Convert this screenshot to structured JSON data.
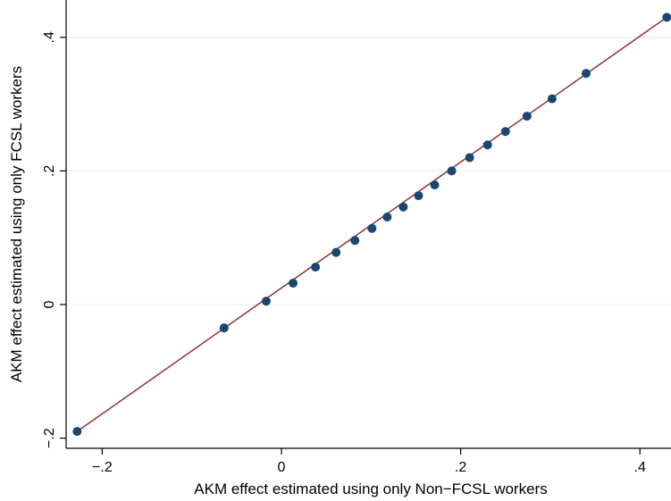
{
  "chart_data": {
    "type": "scatter",
    "title": "",
    "xlabel": "AKM effect estimated using only Non−FCSL workers",
    "ylabel": "AKM effect estimated using only FCSL workers",
    "xlim": [
      -0.24,
      0.43
    ],
    "ylim": [
      -0.2,
      0.43
    ],
    "x_ticks": [
      -0.2,
      0,
      0.2,
      0.4
    ],
    "x_tick_labels": [
      "−.2",
      "0",
      ".2",
      ".4"
    ],
    "y_ticks": [
      -0.2,
      0,
      0.2,
      0.4
    ],
    "y_tick_labels": [
      "−.2",
      "0",
      ".2",
      ".4"
    ],
    "grid": "horizontal",
    "points": [
      {
        "x": -0.228,
        "y": -0.19
      },
      {
        "x": -0.064,
        "y": -0.035
      },
      {
        "x": -0.017,
        "y": 0.005
      },
      {
        "x": 0.013,
        "y": 0.032
      },
      {
        "x": 0.038,
        "y": 0.056
      },
      {
        "x": 0.061,
        "y": 0.078
      },
      {
        "x": 0.082,
        "y": 0.096
      },
      {
        "x": 0.101,
        "y": 0.114
      },
      {
        "x": 0.118,
        "y": 0.131
      },
      {
        "x": 0.136,
        "y": 0.146
      },
      {
        "x": 0.153,
        "y": 0.163
      },
      {
        "x": 0.171,
        "y": 0.179
      },
      {
        "x": 0.19,
        "y": 0.2
      },
      {
        "x": 0.21,
        "y": 0.22
      },
      {
        "x": 0.23,
        "y": 0.239
      },
      {
        "x": 0.25,
        "y": 0.259
      },
      {
        "x": 0.274,
        "y": 0.282
      },
      {
        "x": 0.302,
        "y": 0.308
      },
      {
        "x": 0.34,
        "y": 0.346
      },
      {
        "x": 0.43,
        "y": 0.43
      }
    ],
    "fit_line": {
      "x": [
        -0.228,
        0.43
      ],
      "y": [
        -0.19,
        0.43
      ]
    },
    "colors": {
      "points": "#1a476f",
      "fit_line": "#90353b",
      "grid": "#eaf2f3",
      "axis": "#000000"
    }
  }
}
